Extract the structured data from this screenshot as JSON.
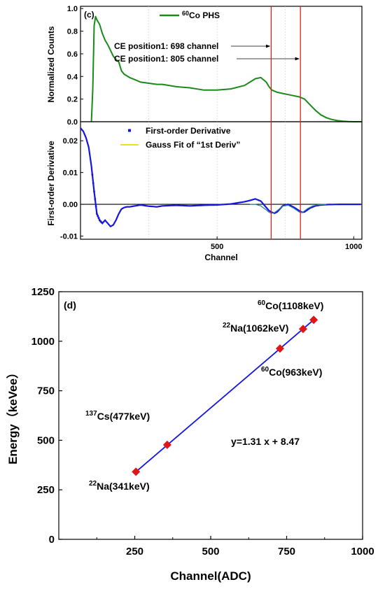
{
  "chart_data": [
    {
      "type": "line",
      "panel_label": "(c)",
      "ylabel": "Normalized Counts",
      "xlim": [
        0,
        1030
      ],
      "ylim": [
        0,
        1.02
      ],
      "yticks": [
        "0.0",
        "0.2",
        "0.4",
        "0.6",
        "0.8",
        "1.0"
      ],
      "legend": {
        "placement": "top-center",
        "sup": "60",
        "text": "Co PHS",
        "color": "#1a8a1a"
      },
      "series": [
        {
          "name": "60Co PHS",
          "color": "#1a8a1a",
          "x": [
            40,
            45,
            50,
            55,
            60,
            70,
            80,
            90,
            100,
            110,
            120,
            130,
            140,
            150,
            160,
            180,
            200,
            220,
            250,
            280,
            300,
            350,
            400,
            450,
            500,
            550,
            600,
            620,
            640,
            660,
            680,
            690,
            700,
            720,
            740,
            760,
            780,
            800,
            820,
            840,
            860,
            880,
            900,
            920,
            940,
            960,
            980,
            1000,
            1030
          ],
          "y": [
            0.0,
            0.3,
            0.85,
            0.93,
            0.9,
            0.86,
            0.78,
            0.72,
            0.68,
            0.63,
            0.58,
            0.55,
            0.53,
            0.45,
            0.42,
            0.39,
            0.37,
            0.35,
            0.34,
            0.33,
            0.33,
            0.31,
            0.3,
            0.28,
            0.28,
            0.29,
            0.32,
            0.35,
            0.38,
            0.39,
            0.35,
            0.31,
            0.28,
            0.26,
            0.25,
            0.24,
            0.23,
            0.22,
            0.2,
            0.15,
            0.1,
            0.06,
            0.035,
            0.02,
            0.01,
            0.005,
            0.002,
            0.0,
            0.0
          ]
        }
      ],
      "annotations": [
        {
          "text": "CE position1: 698 channel",
          "arrow_to_x": 698,
          "y": 0.71
        },
        {
          "text": "CE position1: 805 channel",
          "arrow_to_x": 805,
          "y": 0.58
        }
      ],
      "vlines": [
        698,
        805
      ],
      "vline_color": "#e02020"
    },
    {
      "type": "scatter",
      "ylabel": "First-order Derivative",
      "xlabel": "Channel",
      "xlim": [
        0,
        1030
      ],
      "ylim": [
        -0.011,
        0.026
      ],
      "xticks": [
        500,
        1000
      ],
      "yticks": [
        "0.02",
        "0.01",
        "0.00",
        "-0.01"
      ],
      "ytick_values": [
        0.02,
        0.01,
        0.0,
        -0.01
      ],
      "legend": [
        {
          "text": "First-order Derivative",
          "color": "#1515e0",
          "marker": "square"
        },
        {
          "text": "Gauss Fit of “1st Deriv”",
          "color": "#f0e020",
          "marker": "line"
        }
      ],
      "series": [
        {
          "name": "First-order Derivative",
          "color": "#1515e0",
          "x": [
            0,
            10,
            20,
            30,
            40,
            50,
            60,
            70,
            80,
            90,
            100,
            110,
            120,
            130,
            140,
            150,
            160,
            170,
            180,
            200,
            220,
            250,
            280,
            300,
            350,
            400,
            450,
            500,
            550,
            600,
            620,
            640,
            660,
            680,
            690,
            700,
            710,
            720,
            740,
            760,
            780,
            800,
            810,
            820,
            840,
            860,
            880,
            900,
            950,
            1000,
            1030
          ],
          "y": [
            0.024,
            0.023,
            0.021,
            0.018,
            0.012,
            0.004,
            -0.003,
            -0.005,
            -0.006,
            -0.005,
            -0.006,
            -0.007,
            -0.0065,
            -0.005,
            -0.003,
            -0.0015,
            -0.001,
            -0.0008,
            -0.0008,
            -0.0005,
            -0.0002,
            -0.0006,
            -0.0008,
            -0.0005,
            -0.0003,
            -0.0005,
            -0.0003,
            -0.0002,
            0.0001,
            0.0008,
            0.0012,
            0.0017,
            0.001,
            -0.001,
            -0.002,
            -0.0025,
            -0.0028,
            -0.0024,
            -0.0005,
            0.0,
            -0.0009,
            -0.002,
            -0.0025,
            -0.0024,
            -0.0012,
            -0.0005,
            -0.0002,
            -0.0001,
            0.0,
            0.0,
            0.0
          ]
        },
        {
          "name": "Gauss Fit of “1st Deriv”",
          "color": "#f0e020",
          "x": [
            620,
            640,
            660,
            680,
            690,
            698,
            710,
            720,
            740,
            760,
            780,
            800,
            805,
            815,
            830,
            850,
            870,
            900
          ],
          "y": [
            0.0,
            0.0,
            -0.0005,
            -0.0018,
            -0.0025,
            -0.0028,
            -0.0026,
            -0.002,
            -0.0006,
            -0.0003,
            -0.0012,
            -0.0024,
            -0.0026,
            -0.0024,
            -0.0014,
            -0.0005,
            -0.0001,
            0.0
          ]
        }
      ]
    },
    {
      "type": "scatter",
      "panel_label": "(d)",
      "xlabel": "Channel(ADC)",
      "ylabel": "Energy（keVee）",
      "xlim": [
        0,
        1000
      ],
      "ylim": [
        0,
        1250
      ],
      "xticks": [
        250,
        500,
        750,
        1000
      ],
      "yticks": [
        0,
        250,
        500,
        750,
        1000,
        1250
      ],
      "fit_label": "y=1.31 x + 8.47",
      "fit": {
        "slope": 1.31,
        "intercept": 8.47,
        "x_range": [
          244,
          806
        ],
        "color": "#1515e0"
      },
      "points": [
        {
          "x": 254,
          "y": 341,
          "sup": "22",
          "label": "Na(341keV)"
        },
        {
          "x": 357,
          "y": 477,
          "sup": "137",
          "label": "Cs(477keV)"
        },
        {
          "x": 728,
          "y": 963,
          "sup": "60",
          "label": "Co(963keV)"
        },
        {
          "x": 804,
          "y": 1062,
          "sup": "22",
          "label": "Na(1062keV)"
        },
        {
          "x": 839,
          "y": 1108,
          "sup": "60",
          "label": "Co(1108keV)"
        }
      ],
      "marker_color": "#e01515"
    }
  ]
}
